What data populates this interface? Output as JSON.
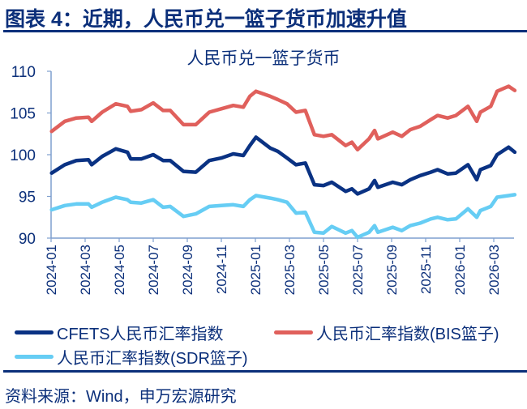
{
  "header": {
    "title": "图表 4：近期，人民币兑一篮子货币加速升值"
  },
  "footer": {
    "source": "资料来源：Wind，申万宏源研究"
  },
  "chart_data": {
    "type": "line",
    "title": "人民币兑一篮子货币",
    "xlabel": "",
    "ylabel": "",
    "ylim": [
      90,
      110
    ],
    "yticks": [
      "90",
      "95",
      "100",
      "105",
      "110"
    ],
    "xticks": [
      "2024-01",
      "2024-03",
      "2024-05",
      "2024-07",
      "2024-09",
      "2024-11",
      "2025-01",
      "2025-03",
      "2025-05",
      "2025-07",
      "2025-09",
      "2025-11",
      "2026-01",
      "2026-03"
    ],
    "grid": false,
    "legend_placement": "bottom",
    "x": [
      "2024-01-02",
      "2024-01-26",
      "2024-02-15",
      "2024-03-07",
      "2024-03-13",
      "2024-04-01",
      "2024-04-25",
      "2024-05-16",
      "2024-05-22",
      "2024-06-10",
      "2024-07-01",
      "2024-07-19",
      "2024-08-01",
      "2024-08-25",
      "2024-09-16",
      "2024-10-10",
      "2024-11-01",
      "2024-11-22",
      "2024-12-10",
      "2024-12-22",
      "2025-01-02",
      "2025-01-28",
      "2025-02-10",
      "2025-02-25",
      "2025-03-13",
      "2025-03-30",
      "2025-04-15",
      "2025-05-01",
      "2025-05-16",
      "2025-06-10",
      "2025-06-21",
      "2025-07-01",
      "2025-07-22",
      "2025-08-01",
      "2025-08-07",
      "2025-09-03",
      "2025-09-19",
      "2025-10-04",
      "2025-10-22",
      "2025-11-10",
      "2025-11-22",
      "2025-12-10",
      "2025-12-25",
      "2026-01-16",
      "2026-02-01",
      "2026-02-07",
      "2026-02-24",
      "2026-03-07",
      "2026-03-28",
      "2026-04-08"
    ],
    "series": [
      {
        "name": "CFETS人民币汇率指数",
        "color": "#0a3283",
        "values": [
          97.8,
          98.8,
          99.3,
          99.4,
          98.8,
          99.8,
          100.7,
          100.3,
          99.5,
          99.5,
          100.0,
          99.3,
          99.3,
          98.0,
          97.9,
          99.3,
          99.6,
          100.1,
          99.9,
          101.1,
          102.1,
          100.8,
          100.4,
          99.6,
          98.8,
          99.0,
          96.4,
          96.3,
          96.7,
          95.6,
          95.9,
          95.3,
          95.9,
          96.9,
          96.1,
          96.7,
          96.4,
          97.0,
          97.5,
          97.9,
          98.2,
          97.7,
          97.8,
          98.8,
          97.0,
          98.2,
          98.7,
          100.0,
          100.9,
          100.3
        ]
      },
      {
        "name": "人民币汇率指数(BIS篮子)",
        "color": "#e0605c",
        "values": [
          102.8,
          104.0,
          104.4,
          104.5,
          104.0,
          105.1,
          106.1,
          105.8,
          105.2,
          105.4,
          106.2,
          105.3,
          105.3,
          103.6,
          103.6,
          105.1,
          105.5,
          105.9,
          105.7,
          107.0,
          107.6,
          107.0,
          106.6,
          106.1,
          105.1,
          105.3,
          102.4,
          102.2,
          102.4,
          101.1,
          101.5,
          100.6,
          101.9,
          102.9,
          101.9,
          102.7,
          102.2,
          103.0,
          103.4,
          104.2,
          104.7,
          104.4,
          104.7,
          105.8,
          104.0,
          105.1,
          105.8,
          107.6,
          108.2,
          107.7
        ]
      },
      {
        "name": "人民币汇率指数(SDR篮子)",
        "color": "#66cdf4",
        "values": [
          93.4,
          93.9,
          94.1,
          94.1,
          93.7,
          94.3,
          94.9,
          94.6,
          94.3,
          94.2,
          94.6,
          93.7,
          93.8,
          92.6,
          92.9,
          93.8,
          93.9,
          94.0,
          93.8,
          94.6,
          95.1,
          94.8,
          94.6,
          94.3,
          93.0,
          93.1,
          90.7,
          90.6,
          91.4,
          90.6,
          90.9,
          90.1,
          90.7,
          91.5,
          90.7,
          91.3,
          90.9,
          91.5,
          91.8,
          92.3,
          92.5,
          92.2,
          92.3,
          93.5,
          92.5,
          93.3,
          93.8,
          94.9,
          95.1,
          95.2
        ]
      }
    ]
  }
}
